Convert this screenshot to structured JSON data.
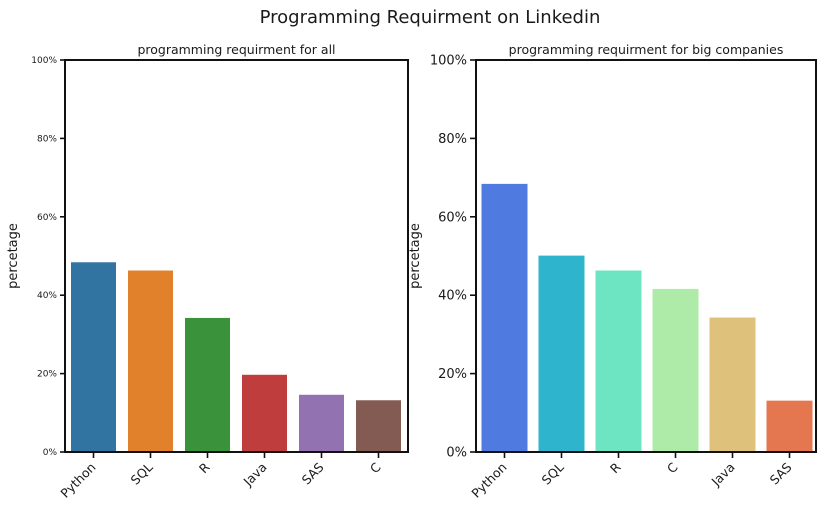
{
  "figure": {
    "title": "Programming Requirment on Linkedin"
  },
  "chart_data": [
    {
      "type": "bar",
      "title": "programming requirment for all",
      "xlabel": "",
      "ylabel": "percetage",
      "ylim": [
        0,
        100
      ],
      "yticks": [
        "0%",
        "20%",
        "40%",
        "60%",
        "80%",
        "100%"
      ],
      "categories": [
        "Python",
        "SQL",
        "R",
        "Java",
        "SAS",
        "C"
      ],
      "values": [
        48.4,
        46.3,
        34.2,
        19.7,
        14.6,
        13.2
      ],
      "colors": [
        "#3274a1",
        "#e1812c",
        "#3a923a",
        "#c03d3e",
        "#9372b2",
        "#845b53"
      ],
      "grid": false
    },
    {
      "type": "bar",
      "title": "programming requirment for big companies",
      "xlabel": "",
      "ylabel": "percetage",
      "ylim": [
        0,
        100
      ],
      "yticks": [
        "0%",
        "20%",
        "40%",
        "60%",
        "80%",
        "100%"
      ],
      "categories": [
        "Python",
        "SQL",
        "R",
        "C",
        "Java",
        "SAS"
      ],
      "values": [
        68.4,
        50.1,
        46.3,
        41.6,
        34.3,
        13.1
      ],
      "colors": [
        "#4f7ae0",
        "#2eb4cc",
        "#6ee5c2",
        "#aeeba8",
        "#dec27b",
        "#e57750"
      ],
      "grid": false
    }
  ]
}
